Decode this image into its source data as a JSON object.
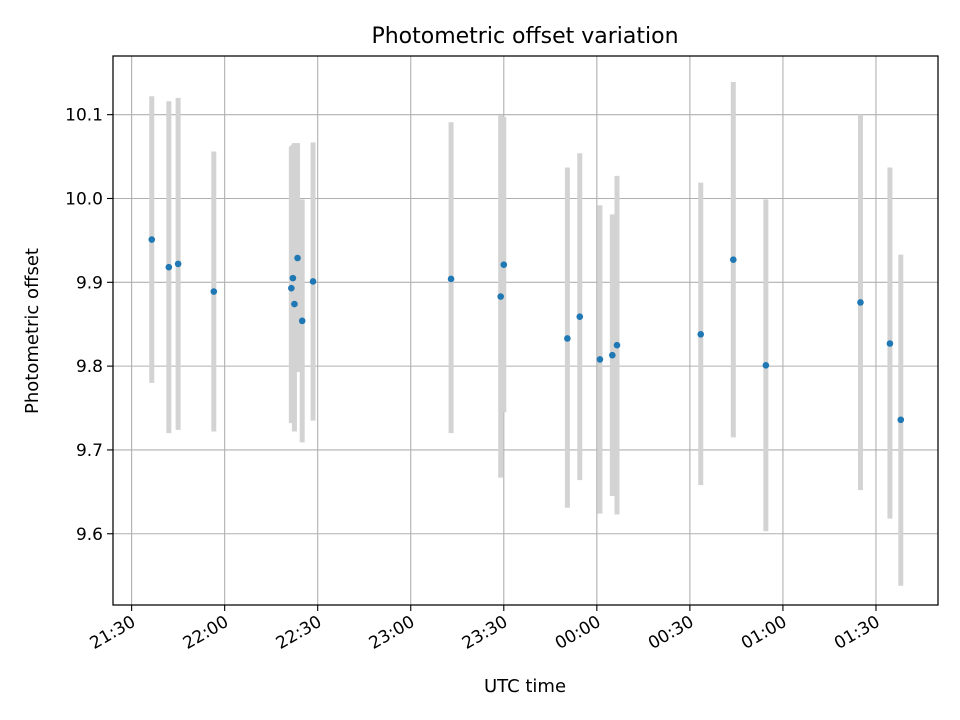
{
  "chart_data": {
    "type": "scatter",
    "title": "Photometric offset variation",
    "xlabel": "UTC time",
    "ylabel": "Photometric offset",
    "x_axis": "time",
    "x_tick_labels": [
      "21:30",
      "22:00",
      "22:30",
      "23:00",
      "23:30",
      "00:00",
      "00:30",
      "01:00",
      "01:30"
    ],
    "x_ticks": [
      "2000-01-01T21:30",
      "2000-01-01T22:00",
      "2000-01-01T22:30",
      "2000-01-01T23:00",
      "2000-01-01T23:30",
      "2000-01-02T00:00",
      "2000-01-02T00:30",
      "2000-01-02T01:00",
      "2000-01-02T01:30"
    ],
    "xlim": [
      "2000-01-01T21:24",
      "2000-01-02T01:50"
    ],
    "y_tick_labels": [
      "9.6",
      "9.7",
      "9.8",
      "9.9",
      "10.0",
      "10.1"
    ],
    "yticks": [
      9.6,
      9.7,
      9.8,
      9.9,
      10.0,
      10.1
    ],
    "ylim": [
      9.515,
      10.17
    ],
    "grid": true,
    "marker_color": "#1f77b4",
    "errorbar_color": "#d3d3d3",
    "series": [
      {
        "points": [
          {
            "x": "2000-01-01T21:36:30",
            "y": 9.951,
            "lo": 9.78,
            "hi": 10.122
          },
          {
            "x": "2000-01-01T21:42:00",
            "y": 9.918,
            "lo": 9.72,
            "hi": 10.116
          },
          {
            "x": "2000-01-01T21:45:00",
            "y": 9.922,
            "lo": 9.724,
            "hi": 10.12
          },
          {
            "x": "2000-01-01T21:56:30",
            "y": 9.889,
            "lo": 9.722,
            "hi": 10.056
          },
          {
            "x": "2000-01-01T22:21:30",
            "y": 9.893,
            "lo": 9.732,
            "hi": 10.062
          },
          {
            "x": "2000-01-01T22:22:00",
            "y": 9.905,
            "lo": 9.734,
            "hi": 10.064
          },
          {
            "x": "2000-01-01T22:22:30",
            "y": 9.874,
            "lo": 9.722,
            "hi": 10.066
          },
          {
            "x": "2000-01-01T22:23:30",
            "y": 9.929,
            "lo": 9.793,
            "hi": 10.066
          },
          {
            "x": "2000-01-01T22:25:00",
            "y": 9.854,
            "lo": 9.709,
            "hi": 9.999
          },
          {
            "x": "2000-01-01T22:28:30",
            "y": 9.901,
            "lo": 9.735,
            "hi": 10.067
          },
          {
            "x": "2000-01-01T23:13:00",
            "y": 9.904,
            "lo": 9.72,
            "hi": 10.091
          },
          {
            "x": "2000-01-01T23:29:00",
            "y": 9.883,
            "lo": 9.667,
            "hi": 10.099
          },
          {
            "x": "2000-01-01T23:30:00",
            "y": 9.921,
            "lo": 9.745,
            "hi": 10.097
          },
          {
            "x": "2000-01-01T23:50:30",
            "y": 9.833,
            "lo": 9.631,
            "hi": 10.037
          },
          {
            "x": "2000-01-01T23:54:30",
            "y": 9.859,
            "lo": 9.664,
            "hi": 10.054
          },
          {
            "x": "2000-01-02T00:01:00",
            "y": 9.808,
            "lo": 9.624,
            "hi": 9.992
          },
          {
            "x": "2000-01-02T00:05:00",
            "y": 9.813,
            "lo": 9.645,
            "hi": 9.981
          },
          {
            "x": "2000-01-02T00:06:30",
            "y": 9.825,
            "lo": 9.623,
            "hi": 10.027
          },
          {
            "x": "2000-01-02T00:33:30",
            "y": 9.838,
            "lo": 9.658,
            "hi": 10.019
          },
          {
            "x": "2000-01-02T00:44:00",
            "y": 9.927,
            "lo": 9.715,
            "hi": 10.139
          },
          {
            "x": "2000-01-02T00:54:30",
            "y": 9.801,
            "lo": 9.603,
            "hi": 9.999
          },
          {
            "x": "2000-01-02T01:25:00",
            "y": 9.876,
            "lo": 9.652,
            "hi": 10.1
          },
          {
            "x": "2000-01-02T01:34:30",
            "y": 9.827,
            "lo": 9.618,
            "hi": 10.037
          },
          {
            "x": "2000-01-02T01:38:00",
            "y": 9.736,
            "lo": 9.538,
            "hi": 9.933
          }
        ]
      }
    ]
  }
}
